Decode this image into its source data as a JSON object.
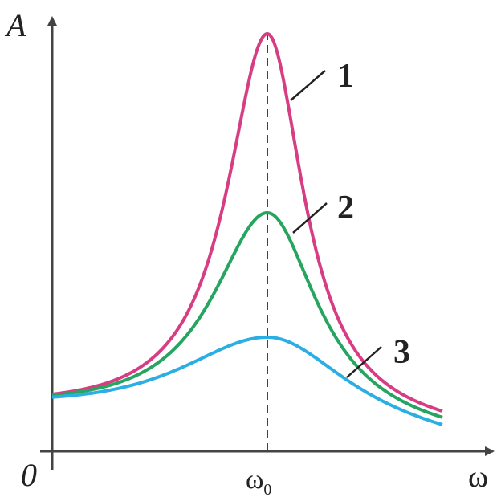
{
  "axes": {
    "y_label": "A",
    "x_label": "ω",
    "origin": "0",
    "x_mark": "ω",
    "x_mark_subscript": "0"
  },
  "curves": [
    {
      "label": "1"
    },
    {
      "label": "2"
    },
    {
      "label": "3"
    }
  ]
}
